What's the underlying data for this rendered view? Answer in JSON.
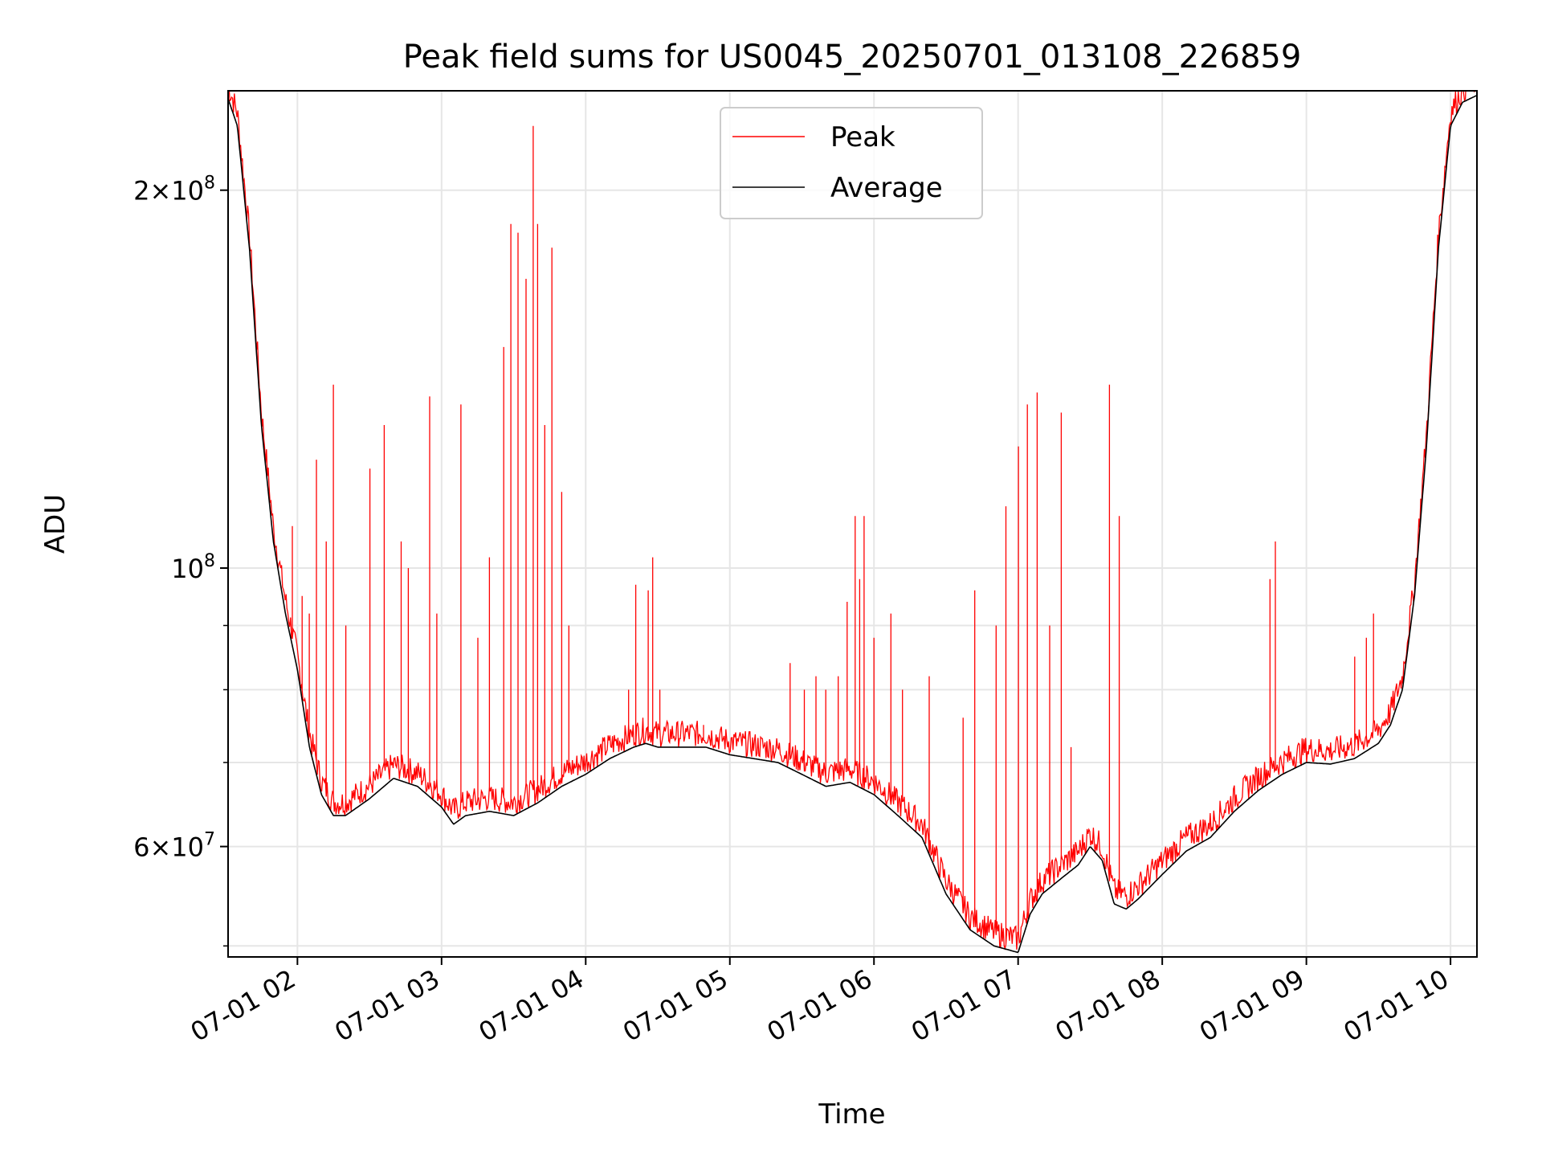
{
  "chart_data": {
    "type": "line",
    "title": "Peak field sums for US0045_20250701_013108_226859",
    "xlabel": "Time",
    "ylabel": "ADU",
    "y_scale": "log",
    "ylim": [
      49000000,
      240000000
    ],
    "xlim": [
      "2025-07-01 01:31:08",
      "2025-07-01 10:11:00"
    ],
    "x_ticks": [
      {
        "t": "2025-07-01 02:00",
        "label": "07-01 02"
      },
      {
        "t": "2025-07-01 03:00",
        "label": "07-01 03"
      },
      {
        "t": "2025-07-01 04:00",
        "label": "07-01 04"
      },
      {
        "t": "2025-07-01 05:00",
        "label": "07-01 05"
      },
      {
        "t": "2025-07-01 06:00",
        "label": "07-01 06"
      },
      {
        "t": "2025-07-01 07:00",
        "label": "07-01 07"
      },
      {
        "t": "2025-07-01 08:00",
        "label": "07-01 08"
      },
      {
        "t": "2025-07-01 09:00",
        "label": "07-01 09"
      },
      {
        "t": "2025-07-01 10:00",
        "label": "07-01 10"
      }
    ],
    "y_ticks": [
      {
        "value": 60000000,
        "base": "6",
        "exp": "7",
        "label": "6 × 10^7"
      },
      {
        "value": 100000000,
        "base": "",
        "exp": "8",
        "label": "10^8"
      },
      {
        "value": 200000000,
        "base": "2",
        "exp": "8",
        "label": "2 × 10^8"
      }
    ],
    "y_minor_ticks": [
      50000000,
      70000000,
      80000000,
      90000000
    ],
    "grid": true,
    "legend_position": "top-center",
    "series": [
      {
        "name": "Average",
        "color": "#000000",
        "x": [
          "2025-07-01 01:31",
          "2025-07-01 01:35",
          "2025-07-01 01:40",
          "2025-07-01 01:45",
          "2025-07-01 01:50",
          "2025-07-01 01:55",
          "2025-07-01 02:00",
          "2025-07-01 02:05",
          "2025-07-01 02:10",
          "2025-07-01 02:15",
          "2025-07-01 02:20",
          "2025-07-01 02:30",
          "2025-07-01 02:40",
          "2025-07-01 02:50",
          "2025-07-01 03:00",
          "2025-07-01 03:05",
          "2025-07-01 03:10",
          "2025-07-01 03:20",
          "2025-07-01 03:30",
          "2025-07-01 03:40",
          "2025-07-01 03:50",
          "2025-07-01 04:00",
          "2025-07-01 04:10",
          "2025-07-01 04:20",
          "2025-07-01 04:25",
          "2025-07-01 04:30",
          "2025-07-01 04:40",
          "2025-07-01 04:50",
          "2025-07-01 05:00",
          "2025-07-01 05:10",
          "2025-07-01 05:20",
          "2025-07-01 05:30",
          "2025-07-01 05:40",
          "2025-07-01 05:50",
          "2025-07-01 06:00",
          "2025-07-01 06:10",
          "2025-07-01 06:20",
          "2025-07-01 06:30",
          "2025-07-01 06:40",
          "2025-07-01 06:50",
          "2025-07-01 06:55",
          "2025-07-01 07:00",
          "2025-07-01 07:05",
          "2025-07-01 07:10",
          "2025-07-01 07:20",
          "2025-07-01 07:25",
          "2025-07-01 07:30",
          "2025-07-01 07:35",
          "2025-07-01 07:40",
          "2025-07-01 07:45",
          "2025-07-01 07:50",
          "2025-07-01 08:00",
          "2025-07-01 08:10",
          "2025-07-01 08:20",
          "2025-07-01 08:30",
          "2025-07-01 08:40",
          "2025-07-01 08:50",
          "2025-07-01 09:00",
          "2025-07-01 09:10",
          "2025-07-01 09:20",
          "2025-07-01 09:30",
          "2025-07-01 09:35",
          "2025-07-01 09:40",
          "2025-07-01 09:45",
          "2025-07-01 09:50",
          "2025-07-01 09:55",
          "2025-07-01 10:00",
          "2025-07-01 10:05",
          "2025-07-01 10:11"
        ],
        "values": [
          237000000,
          225000000,
          180000000,
          130000000,
          105000000,
          92000000,
          83000000,
          72000000,
          66000000,
          63500000,
          63500000,
          65500000,
          68000000,
          67000000,
          64500000,
          62500000,
          63500000,
          64000000,
          63500000,
          65000000,
          67000000,
          68500000,
          70500000,
          72000000,
          72500000,
          72000000,
          72000000,
          72000000,
          71000000,
          70500000,
          70000000,
          68500000,
          67000000,
          67500000,
          66000000,
          63500000,
          61000000,
          55000000,
          51500000,
          50000000,
          49700000,
          49400000,
          53000000,
          55000000,
          57000000,
          58000000,
          60000000,
          58500000,
          54000000,
          53500000,
          54500000,
          57000000,
          59500000,
          61000000,
          64000000,
          66500000,
          68500000,
          70000000,
          69800000,
          70500000,
          72500000,
          75000000,
          80000000,
          95000000,
          125000000,
          180000000,
          225000000,
          235000000,
          238000000
        ]
      },
      {
        "name": "Peak",
        "color": "#ff0000",
        "spikes": [
          {
            "t": "2025-07-01 01:58",
            "v": 108000000
          },
          {
            "t": "2025-07-01 02:02",
            "v": 95000000
          },
          {
            "t": "2025-07-01 02:05",
            "v": 92000000
          },
          {
            "t": "2025-07-01 02:08",
            "v": 122000000
          },
          {
            "t": "2025-07-01 02:12",
            "v": 105000000
          },
          {
            "t": "2025-07-01 02:15",
            "v": 140000000
          },
          {
            "t": "2025-07-01 02:20",
            "v": 90000000
          },
          {
            "t": "2025-07-01 02:30",
            "v": 120000000
          },
          {
            "t": "2025-07-01 02:36",
            "v": 130000000
          },
          {
            "t": "2025-07-01 02:43",
            "v": 105000000
          },
          {
            "t": "2025-07-01 02:46",
            "v": 100000000
          },
          {
            "t": "2025-07-01 02:55",
            "v": 137000000
          },
          {
            "t": "2025-07-01 02:58",
            "v": 92000000
          },
          {
            "t": "2025-07-01 03:08",
            "v": 135000000
          },
          {
            "t": "2025-07-01 03:15",
            "v": 88000000
          },
          {
            "t": "2025-07-01 03:20",
            "v": 102000000
          },
          {
            "t": "2025-07-01 03:26",
            "v": 150000000
          },
          {
            "t": "2025-07-01 03:29",
            "v": 188000000
          },
          {
            "t": "2025-07-01 03:32",
            "v": 185000000
          },
          {
            "t": "2025-07-01 03:35",
            "v": 170000000
          },
          {
            "t": "2025-07-01 03:38",
            "v": 225000000
          },
          {
            "t": "2025-07-01 03:40",
            "v": 188000000
          },
          {
            "t": "2025-07-01 03:43",
            "v": 130000000
          },
          {
            "t": "2025-07-01 03:46",
            "v": 180000000
          },
          {
            "t": "2025-07-01 03:50",
            "v": 115000000
          },
          {
            "t": "2025-07-01 03:53",
            "v": 90000000
          },
          {
            "t": "2025-07-01 04:18",
            "v": 80000000
          },
          {
            "t": "2025-07-01 04:21",
            "v": 97000000
          },
          {
            "t": "2025-07-01 04:26",
            "v": 96000000
          },
          {
            "t": "2025-07-01 04:28",
            "v": 102000000
          },
          {
            "t": "2025-07-01 04:31",
            "v": 80000000
          },
          {
            "t": "2025-07-01 04:49",
            "v": 75000000
          },
          {
            "t": "2025-07-01 05:25",
            "v": 84000000
          },
          {
            "t": "2025-07-01 05:31",
            "v": 80000000
          },
          {
            "t": "2025-07-01 05:36",
            "v": 82000000
          },
          {
            "t": "2025-07-01 05:40",
            "v": 80000000
          },
          {
            "t": "2025-07-01 05:45",
            "v": 82000000
          },
          {
            "t": "2025-07-01 05:49",
            "v": 94000000
          },
          {
            "t": "2025-07-01 05:52",
            "v": 110000000
          },
          {
            "t": "2025-07-01 05:54",
            "v": 98000000
          },
          {
            "t": "2025-07-01 05:56",
            "v": 110000000
          },
          {
            "t": "2025-07-01 06:00",
            "v": 88000000
          },
          {
            "t": "2025-07-01 06:07",
            "v": 92000000
          },
          {
            "t": "2025-07-01 06:12",
            "v": 80000000
          },
          {
            "t": "2025-07-01 06:23",
            "v": 82000000
          },
          {
            "t": "2025-07-01 06:37",
            "v": 76000000
          },
          {
            "t": "2025-07-01 06:42",
            "v": 96000000
          },
          {
            "t": "2025-07-01 06:51",
            "v": 90000000
          },
          {
            "t": "2025-07-01 06:55",
            "v": 112000000
          },
          {
            "t": "2025-07-01 07:00",
            "v": 125000000
          },
          {
            "t": "2025-07-01 07:04",
            "v": 135000000
          },
          {
            "t": "2025-07-01 07:08",
            "v": 138000000
          },
          {
            "t": "2025-07-01 07:13",
            "v": 90000000
          },
          {
            "t": "2025-07-01 07:18",
            "v": 133000000
          },
          {
            "t": "2025-07-01 07:22",
            "v": 72000000
          },
          {
            "t": "2025-07-01 07:38",
            "v": 140000000
          },
          {
            "t": "2025-07-01 07:42",
            "v": 110000000
          },
          {
            "t": "2025-07-01 08:45",
            "v": 98000000
          },
          {
            "t": "2025-07-01 08:47",
            "v": 105000000
          },
          {
            "t": "2025-07-01 09:20",
            "v": 85000000
          },
          {
            "t": "2025-07-01 09:25",
            "v": 88000000
          },
          {
            "t": "2025-07-01 09:28",
            "v": 92000000
          }
        ]
      }
    ]
  }
}
